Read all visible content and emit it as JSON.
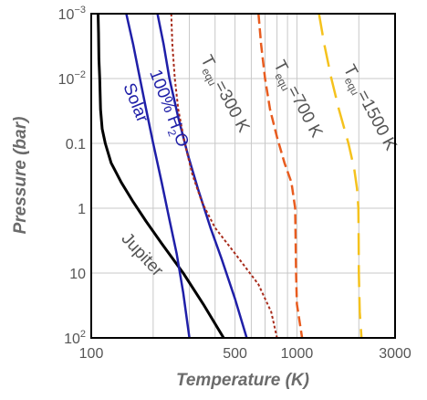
{
  "chart_data": {
    "type": "line",
    "title": "",
    "xlabel": "Temperature (K)",
    "ylabel": "Pressure (bar)",
    "x_scale": "log",
    "y_scale": "log",
    "y_inverted": true,
    "xlim": [
      100,
      3000
    ],
    "ylim": [
      0.001,
      100
    ],
    "grid": true,
    "x_ticks": [
      {
        "value": 100,
        "label": "100"
      },
      {
        "value": 500,
        "label": "500"
      },
      {
        "value": 1000,
        "label": "1000"
      },
      {
        "value": 3000,
        "label": "3000"
      }
    ],
    "y_ticks": [
      {
        "value": 0.001,
        "label": "10",
        "exp": "−3"
      },
      {
        "value": 0.01,
        "label": "10",
        "exp": "−2"
      },
      {
        "value": 0.1,
        "label": "0.1",
        "exp": ""
      },
      {
        "value": 1,
        "label": "1",
        "exp": ""
      },
      {
        "value": 10,
        "label": "10",
        "exp": ""
      },
      {
        "value": 100,
        "label": "10",
        "exp": "2"
      }
    ],
    "series": [
      {
        "name": "Jupiter",
        "label_main": "Jupiter",
        "label_sub": "",
        "label_tail": "",
        "color": "#000000",
        "dash": "",
        "width": 3,
        "label_at": [
          139,
          3.0
        ],
        "label_rot": 47,
        "points": [
          [
            108,
            0.001
          ],
          [
            108.5,
            0.002
          ],
          [
            109,
            0.005
          ],
          [
            110,
            0.01
          ],
          [
            111,
            0.03
          ],
          [
            113,
            0.06
          ],
          [
            117,
            0.1
          ],
          [
            125,
            0.2
          ],
          [
            140,
            0.4
          ],
          [
            160,
            0.8
          ],
          [
            185,
            1.6
          ],
          [
            220,
            3.5
          ],
          [
            280,
            10
          ],
          [
            350,
            30
          ],
          [
            440,
            100
          ]
        ]
      },
      {
        "name": "Solar",
        "label_main": "Solar",
        "label_sub": "",
        "label_tail": "",
        "color": "#1f1fa8",
        "dash": "",
        "width": 2.5,
        "label_at": [
          143,
          0.013
        ],
        "label_rot": 68,
        "points": [
          [
            148,
            0.001
          ],
          [
            160,
            0.003
          ],
          [
            170,
            0.008
          ],
          [
            185,
            0.03
          ],
          [
            200,
            0.1
          ],
          [
            220,
            0.4
          ],
          [
            240,
            1.5
          ],
          [
            260,
            5
          ],
          [
            280,
            20
          ],
          [
            300,
            100
          ]
        ]
      },
      {
        "name": "100% H2O",
        "label_main": "100% H",
        "label_sub": "2",
        "label_tail": "O",
        "color": "#1f1fa8",
        "dash": "",
        "width": 2.5,
        "label_at": [
          192,
          0.008
        ],
        "label_rot": 69,
        "points": [
          [
            210,
            0.001
          ],
          [
            225,
            0.003
          ],
          [
            240,
            0.01
          ],
          [
            265,
            0.04
          ],
          [
            295,
            0.15
          ],
          [
            330,
            0.5
          ],
          [
            380,
            2
          ],
          [
            430,
            6
          ],
          [
            500,
            25
          ],
          [
            570,
            100
          ]
        ]
      },
      {
        "name": "Tequ=300 K",
        "label_main": "T",
        "label_sub": "equ",
        "label_tail": "=300 K",
        "color": "#a82c1c",
        "dash": "3 2.5",
        "width": 2,
        "label_at": [
          340,
          0.005
        ],
        "label_rot": 62,
        "points": [
          [
            245,
            0.001
          ],
          [
            248,
            0.003
          ],
          [
            255,
            0.01
          ],
          [
            265,
            0.03
          ],
          [
            285,
            0.1
          ],
          [
            310,
            0.3
          ],
          [
            345,
            0.8
          ],
          [
            400,
            2
          ],
          [
            500,
            5
          ],
          [
            650,
            15
          ],
          [
            750,
            40
          ],
          [
            800,
            100
          ]
        ]
      },
      {
        "name": "Tequ=700 K",
        "label_main": "T",
        "label_sub": "equ",
        "label_tail": "=700 K",
        "color": "#e85c1f",
        "dash": "11 5",
        "width": 2.5,
        "label_at": [
          770,
          0.006
        ],
        "label_rot": 62,
        "points": [
          [
            650,
            0.001
          ],
          [
            670,
            0.003
          ],
          [
            700,
            0.01
          ],
          [
            740,
            0.03
          ],
          [
            800,
            0.08
          ],
          [
            870,
            0.2
          ],
          [
            940,
            0.4
          ],
          [
            980,
            1
          ],
          [
            985,
            3
          ],
          [
            990,
            10
          ],
          [
            1000,
            30
          ],
          [
            1060,
            100
          ]
        ]
      },
      {
        "name": "Tequ=1500 K",
        "label_main": "T",
        "label_sub": "equ",
        "label_tail": "=1500 K",
        "color": "#f5c21d",
        "dash": "24 11",
        "width": 2.5,
        "label_at": [
          1680,
          0.007
        ],
        "label_rot": 62,
        "points": [
          [
            1280,
            0.001
          ],
          [
            1360,
            0.003
          ],
          [
            1470,
            0.01
          ],
          [
            1600,
            0.03
          ],
          [
            1780,
            0.1
          ],
          [
            1900,
            0.25
          ],
          [
            1960,
            0.5
          ],
          [
            1990,
            1
          ],
          [
            1995,
            3
          ],
          [
            2000,
            10
          ],
          [
            2020,
            40
          ],
          [
            2060,
            100
          ]
        ]
      }
    ]
  }
}
